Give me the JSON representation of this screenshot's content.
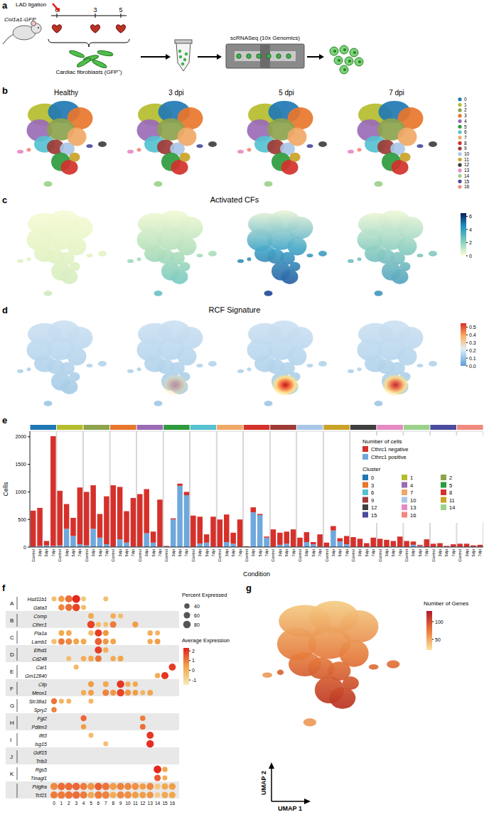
{
  "panel_letters": [
    "a",
    "b",
    "c",
    "d",
    "e",
    "f",
    "g"
  ],
  "schematic": {
    "mouse": "Col1a1-GFP",
    "event": "LAD ligation",
    "timepoints": [
      0,
      3,
      5
    ],
    "cells": "Cardiac fibroblasts (GFP⁺)",
    "method": "scRNASeq (10x Genomics)"
  },
  "umap": {
    "conditions": [
      "Healthy",
      "3 dpi",
      "5 dpi",
      "7 dpi"
    ],
    "clusters": [
      "0",
      "1",
      "2",
      "3",
      "4",
      "5",
      "6",
      "7",
      "8",
      "9",
      "10",
      "11",
      "12",
      "13",
      "14",
      "15",
      "16"
    ],
    "cluster_colors": [
      "#1F78B4",
      "#B5BD2E",
      "#8DA34E",
      "#E8762B",
      "#9A6BB5",
      "#2E9B3E",
      "#56C1D0",
      "#F0A866",
      "#D3312B",
      "#9E3A34",
      "#A9C6E8",
      "#C9A227",
      "#3F3F3F",
      "#E78AC3",
      "#9BD18A",
      "#4B4BA0",
      "#F08A7E"
    ]
  },
  "chart_data": [
    {
      "type": "umap_feature",
      "title": "Activated CFs",
      "colorbar_range": [
        0,
        6.5
      ],
      "colorbar_ticks": [
        0,
        2,
        4,
        6
      ]
    },
    {
      "type": "umap_feature",
      "title": "RCF Signature",
      "colorbar_range": [
        0,
        0.55
      ],
      "colorbar_ticks": [
        {
          "value": 0,
          "label": "0.0"
        },
        0.1,
        0.2,
        0.3,
        0.4,
        0.5
      ]
    },
    {
      "type": "bar",
      "stacked": true,
      "grid": false,
      "legend": "top-right",
      "x_label": "Condition",
      "y_label": "Cells",
      "legend_title": "Number of cells",
      "group_legend_title": "Cluster",
      "groups": [
        "0",
        "1",
        "2",
        "3",
        "4",
        "5",
        "6",
        "7",
        "8",
        "9",
        "10",
        "11",
        "12",
        "13",
        "14",
        "15",
        "16"
      ],
      "group_colors": [
        "#1F78B4",
        "#B5BD2E",
        "#8DA34E",
        "#E8762B",
        "#9A6BB5",
        "#2E9B3E",
        "#56C1D0",
        "#F0A866",
        "#D3312B",
        "#9E3A34",
        "#A9C6E8",
        "#C9A227",
        "#3F3F3F",
        "#E78AC3",
        "#9BD18A",
        "#4B4BA0",
        "#F08A7E"
      ],
      "categories": [
        "Control",
        "3dpi",
        "5dpi",
        "7dpi",
        "Control",
        "3dpi",
        "5dpi",
        "7dpi",
        "Control",
        "3dpi",
        "5dpi",
        "7dpi",
        "Control",
        "3dpi",
        "5dpi",
        "7dpi",
        "Control",
        "3dpi",
        "5dpi",
        "7dpi",
        "Control",
        "3dpi",
        "5dpi",
        "7dpi",
        "Control",
        "3dpi",
        "5dpi",
        "7dpi",
        "Control",
        "3dpi",
        "5dpi",
        "7dpi",
        "Control",
        "3dpi",
        "5dpi",
        "7dpi",
        "Control",
        "3dpi",
        "5dpi",
        "7dpi",
        "Control",
        "3dpi",
        "5dpi",
        "7dpi",
        "Control",
        "3dpi",
        "5dpi",
        "7dpi",
        "Control",
        "3dpi",
        "5dpi",
        "7dpi",
        "Control",
        "3dpi",
        "5dpi",
        "7dpi",
        "Control",
        "3dpi",
        "5dpi",
        "7dpi",
        "Control",
        "3dpi",
        "5dpi",
        "7dpi",
        "Control",
        "3dpi",
        "5dpi",
        "7dpi"
      ],
      "series": [
        {
          "name": "Cthrc1 negative",
          "color": "#D6302B",
          "values": [
            650,
            690,
            80,
            1990,
            990,
            450,
            330,
            1030,
            970,
            790,
            430,
            870,
            1110,
            950,
            570,
            880,
            950,
            800,
            200,
            850,
            10,
            20,
            40,
            60,
            565,
            490,
            150,
            545,
            495,
            500,
            200,
            495,
            10,
            90,
            20,
            20,
            315,
            220,
            220,
            315,
            160,
            180,
            40,
            220,
            75,
            80,
            60,
            150,
            175,
            145,
            65,
            165,
            145,
            125,
            100,
            185,
            105,
            60,
            20,
            135,
            55,
            65,
            15,
            45,
            55,
            55,
            25,
            35
          ]
        },
        {
          "name": "Cthrc1 positive",
          "color": "#6FA8DC",
          "values": [
            10,
            20,
            30,
            20,
            30,
            330,
            200,
            50,
            30,
            330,
            170,
            50,
            10,
            140,
            80,
            10,
            10,
            250,
            80,
            10,
            10,
            500,
            1110,
            940,
            5,
            60,
            80,
            5,
            5,
            90,
            60,
            5,
            5,
            630,
            580,
            170,
            5,
            40,
            60,
            5,
            10,
            90,
            50,
            10,
            5,
            300,
            100,
            50,
            5,
            5,
            5,
            5,
            5,
            5,
            10,
            5,
            5,
            40,
            20,
            5,
            5,
            5,
            5,
            5,
            5,
            5,
            5,
            5
          ]
        }
      ],
      "ylim": [
        0,
        2100
      ],
      "yticks": [
        0,
        500,
        1000,
        1500,
        2000
      ]
    },
    {
      "type": "dot",
      "genes": [
        "Hsd11b1",
        "Gata3",
        "Comp",
        "Cthrc1",
        "Pla1a",
        "Lamb1",
        "Efhd1",
        "Cd248",
        "Car1",
        "Gm12840",
        "Cilp",
        "Meox1",
        "Slc38a1",
        "Spry2",
        "Fgl2",
        "Pdlim3",
        "Ifit3",
        "Isg15",
        "Gdf15",
        "Trib3",
        "Rgs5",
        "Tinagl1",
        "Pdgfra",
        "Tcf21"
      ],
      "group_labels": [
        "A",
        "B",
        "C",
        "D",
        "E",
        "F",
        "G",
        "H",
        "I",
        "J",
        "K"
      ],
      "clusters": [
        "0",
        "1",
        "2",
        "3",
        "4",
        "5",
        "6",
        "7",
        "8",
        "9",
        "10",
        "11",
        "12",
        "13",
        "14",
        "15",
        "16"
      ],
      "dots": [
        [
          0,
          0,
          35,
          -0.3
        ],
        [
          0,
          1,
          55,
          0.5
        ],
        [
          0,
          2,
          75,
          1.2
        ],
        [
          0,
          3,
          88,
          2.2
        ],
        [
          0,
          4,
          35,
          -0.5
        ],
        [
          0,
          7,
          35,
          -0.3
        ],
        [
          1,
          1,
          55,
          0.8
        ],
        [
          1,
          2,
          70,
          1.2
        ],
        [
          1,
          3,
          80,
          1.8
        ],
        [
          1,
          4,
          35,
          -0.2
        ],
        [
          2,
          5,
          45,
          0.3
        ],
        [
          2,
          8,
          40,
          0.2
        ],
        [
          2,
          9,
          35,
          -0.2
        ],
        [
          3,
          5,
          80,
          1.8
        ],
        [
          3,
          6,
          40,
          -0.2
        ],
        [
          3,
          7,
          35,
          -0.3
        ],
        [
          3,
          8,
          60,
          1.0
        ],
        [
          3,
          11,
          50,
          0.5
        ],
        [
          4,
          1,
          45,
          0.3
        ],
        [
          4,
          2,
          45,
          0.2
        ],
        [
          4,
          5,
          40,
          -0.2
        ],
        [
          4,
          6,
          75,
          1.9
        ],
        [
          4,
          7,
          50,
          0.6
        ],
        [
          4,
          13,
          40,
          0.2
        ],
        [
          4,
          14,
          35,
          0
        ],
        [
          5,
          0,
          40,
          -0.3
        ],
        [
          5,
          1,
          60,
          1.0
        ],
        [
          5,
          2,
          60,
          0.8
        ],
        [
          5,
          3,
          50,
          0.4
        ],
        [
          5,
          4,
          45,
          0.3
        ],
        [
          5,
          6,
          70,
          1.4
        ],
        [
          5,
          7,
          50,
          0.6
        ],
        [
          5,
          8,
          45,
          0.4
        ],
        [
          5,
          13,
          40,
          0.3
        ],
        [
          5,
          14,
          45,
          0.5
        ],
        [
          6,
          6,
          75,
          1.9
        ],
        [
          6,
          7,
          40,
          0.2
        ],
        [
          7,
          2,
          35,
          -0.2
        ],
        [
          7,
          4,
          40,
          0.2
        ],
        [
          7,
          5,
          45,
          0.3
        ],
        [
          7,
          6,
          60,
          1.1
        ],
        [
          7,
          8,
          40,
          0.3
        ],
        [
          7,
          9,
          45,
          0.4
        ],
        [
          8,
          3,
          35,
          -0.1
        ],
        [
          8,
          16,
          70,
          1.9
        ],
        [
          9,
          14,
          40,
          0.2
        ],
        [
          9,
          15,
          75,
          2.0
        ],
        [
          10,
          5,
          50,
          0.5
        ],
        [
          10,
          7,
          45,
          0.3
        ],
        [
          10,
          9,
          80,
          2.0
        ],
        [
          10,
          10,
          40,
          0.2
        ],
        [
          10,
          11,
          40,
          0.3
        ],
        [
          11,
          4,
          40,
          0.2
        ],
        [
          11,
          5,
          45,
          0.5
        ],
        [
          11,
          7,
          60,
          0.9
        ],
        [
          11,
          8,
          50,
          0.6
        ],
        [
          11,
          9,
          80,
          1.8
        ],
        [
          11,
          10,
          55,
          0.6
        ],
        [
          11,
          11,
          45,
          0.5
        ],
        [
          11,
          12,
          35,
          0
        ],
        [
          11,
          13,
          45,
          0.4
        ],
        [
          12,
          0,
          50,
          1.1
        ],
        [
          12,
          1,
          35,
          0
        ],
        [
          12,
          2,
          35,
          0
        ],
        [
          12,
          5,
          35,
          -0.1
        ],
        [
          13,
          0,
          40,
          0.9
        ],
        [
          14,
          4,
          50,
          1.3
        ],
        [
          14,
          12,
          40,
          1.0
        ],
        [
          15,
          4,
          40,
          0.5
        ],
        [
          15,
          12,
          45,
          1.2
        ],
        [
          16,
          5,
          35,
          -0.2
        ],
        [
          16,
          13,
          70,
          2.0
        ],
        [
          17,
          7,
          35,
          -0.3
        ],
        [
          17,
          13,
          80,
          2.1
        ],
        [
          20,
          14,
          85,
          2.2
        ],
        [
          20,
          15,
          40,
          0.3
        ],
        [
          21,
          14,
          60,
          1.5
        ],
        [
          21,
          15,
          35,
          0.2
        ],
        [
          22,
          0,
          75,
          0.8
        ],
        [
          22,
          1,
          80,
          1.2
        ],
        [
          22,
          2,
          80,
          1.2
        ],
        [
          22,
          3,
          80,
          1.3
        ],
        [
          22,
          4,
          75,
          1.0
        ],
        [
          22,
          5,
          70,
          0.6
        ],
        [
          22,
          6,
          80,
          1.4
        ],
        [
          22,
          7,
          78,
          1.1
        ],
        [
          22,
          8,
          70,
          0.5
        ],
        [
          22,
          9,
          75,
          0.9
        ],
        [
          22,
          10,
          70,
          0.8
        ],
        [
          22,
          11,
          70,
          0.7
        ],
        [
          22,
          12,
          60,
          0.5
        ],
        [
          22,
          13,
          70,
          0.8
        ],
        [
          22,
          14,
          45,
          -0.5
        ],
        [
          22,
          15,
          60,
          0.3
        ],
        [
          22,
          16,
          65,
          0.5
        ],
        [
          23,
          0,
          75,
          1.0
        ],
        [
          23,
          1,
          80,
          1.0
        ],
        [
          23,
          2,
          80,
          1.1
        ],
        [
          23,
          3,
          80,
          1.2
        ],
        [
          23,
          4,
          75,
          1.0
        ],
        [
          23,
          5,
          60,
          0.3
        ],
        [
          23,
          6,
          78,
          1.0
        ],
        [
          23,
          7,
          78,
          0.9
        ],
        [
          23,
          8,
          60,
          0.2
        ],
        [
          23,
          9,
          75,
          0.8
        ],
        [
          23,
          10,
          70,
          0.7
        ],
        [
          23,
          11,
          65,
          0.5
        ],
        [
          23,
          12,
          60,
          0.5
        ],
        [
          23,
          13,
          65,
          0.6
        ],
        [
          23,
          14,
          40,
          -0.6
        ],
        [
          23,
          15,
          60,
          0.3
        ],
        [
          23,
          16,
          60,
          0.4
        ]
      ],
      "size_legend_title": "Percent Expressed",
      "size_range": [
        0,
        90
      ],
      "size_ticks": [
        40,
        60,
        80
      ],
      "color_legend_title": "Average Expression",
      "colorbar_range": [
        -1.5,
        2.3
      ],
      "colorbar_ticks": [
        2,
        1,
        0,
        -1
      ]
    },
    {
      "type": "umap_feature",
      "title": "Number of Genes",
      "x_label": "UMAP 1",
      "y_label": "UMAP 2",
      "colorbar_range": [
        20,
        130
      ],
      "colorbar_ticks": [
        50,
        100
      ]
    }
  ]
}
